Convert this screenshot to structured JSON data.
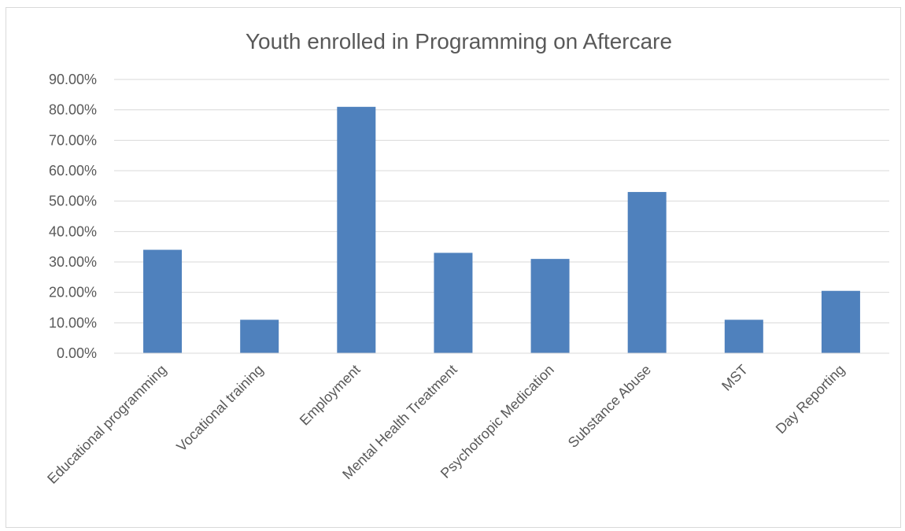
{
  "chart_data": {
    "type": "bar",
    "title": "Youth enrolled in Programming on Aftercare",
    "xlabel": "",
    "ylabel": "",
    "ylim": [
      0,
      0.9
    ],
    "y_ticks": [
      "0.00%",
      "10.00%",
      "20.00%",
      "30.00%",
      "40.00%",
      "50.00%",
      "60.00%",
      "70.00%",
      "80.00%",
      "90.00%"
    ],
    "categories": [
      "Educational programming",
      "Vocational training",
      "Employment",
      "Mental Health Treatment",
      "Psychotropic Medication",
      "Substance Abuse",
      "MST",
      "Day Reporting"
    ],
    "values": [
      0.34,
      0.11,
      0.81,
      0.33,
      0.31,
      0.53,
      0.11,
      0.205
    ],
    "grid": true,
    "legend": "none",
    "colors": {
      "bar": "#4f81bd",
      "grid": "#d9d9d9",
      "text": "#595959"
    }
  }
}
